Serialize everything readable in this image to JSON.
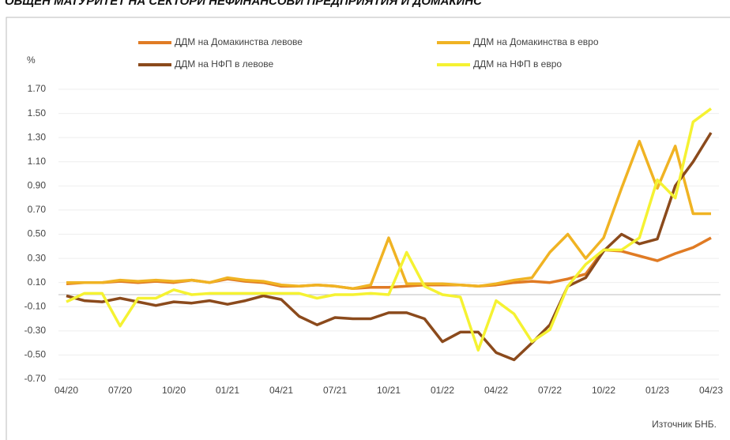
{
  "chart_data": {
    "type": "line",
    "title": "ОБЩЕН МАТУРИТЕТ НА СЕКТОРИ НЕФИНАНСОВИ ПРЕДПРИЯТИЯ И ДОМАКИНС",
    "y_label": "%",
    "source": "Източник БНБ.",
    "categories": [
      "04/20",
      null,
      null,
      "07/20",
      null,
      null,
      "10/20",
      null,
      null,
      "01/21",
      null,
      null,
      "04/21",
      null,
      null,
      "07/21",
      null,
      null,
      "10/21",
      null,
      null,
      "01/22",
      null,
      null,
      "04/22",
      null,
      null,
      "07/22",
      null,
      null,
      "10/22",
      null,
      null,
      "01/23",
      null,
      null,
      "04/23"
    ],
    "series": [
      {
        "name": "ДДМ на Домакинства левове",
        "color": "#e07b24",
        "values": [
          0.09,
          0.1,
          0.1,
          0.11,
          0.1,
          0.11,
          0.1,
          0.12,
          0.1,
          0.13,
          0.11,
          0.1,
          0.07,
          0.07,
          0.08,
          0.07,
          0.05,
          0.06,
          0.06,
          0.07,
          0.08,
          0.08,
          0.08,
          0.07,
          0.08,
          0.1,
          0.11,
          0.1,
          0.13,
          0.17,
          0.37,
          0.36,
          0.32,
          0.28,
          0.34,
          0.39,
          0.47
        ]
      },
      {
        "name": "ДДМ на Домакинства в евро",
        "color": "#f0b323",
        "values": [
          0.1,
          0.1,
          0.1,
          0.12,
          0.11,
          0.12,
          0.11,
          0.12,
          0.1,
          0.14,
          0.12,
          0.11,
          0.08,
          0.07,
          0.08,
          0.07,
          0.05,
          0.08,
          0.47,
          0.09,
          0.09,
          0.09,
          0.08,
          0.07,
          0.09,
          0.12,
          0.14,
          0.35,
          0.5,
          0.3,
          0.47,
          0.88,
          1.27,
          0.88,
          1.23,
          0.67,
          0.67
        ]
      },
      {
        "name": "ДДМ на НФП  в левове",
        "color": "#8b4a1c",
        "values": [
          -0.01,
          -0.05,
          -0.06,
          -0.03,
          -0.06,
          -0.09,
          -0.06,
          -0.07,
          -0.05,
          -0.08,
          -0.05,
          -0.01,
          -0.04,
          -0.18,
          -0.25,
          -0.19,
          -0.2,
          -0.2,
          -0.15,
          -0.15,
          -0.2,
          -0.39,
          -0.31,
          -0.31,
          -0.48,
          -0.54,
          -0.4,
          -0.25,
          0.07,
          0.14,
          0.36,
          0.5,
          0.42,
          0.46,
          0.9,
          1.1,
          1.34
        ]
      },
      {
        "name": "ДДМ на НФП  в евро",
        "color": "#f5f232",
        "values": [
          -0.06,
          0.01,
          0.01,
          -0.26,
          -0.03,
          -0.03,
          0.04,
          0.0,
          0.01,
          0.01,
          0.01,
          0.01,
          0.01,
          0.01,
          -0.03,
          0.0,
          0.0,
          0.01,
          0.0,
          0.35,
          0.07,
          0.0,
          -0.02,
          -0.46,
          -0.05,
          -0.16,
          -0.39,
          -0.29,
          0.07,
          0.25,
          0.37,
          0.37,
          0.47,
          0.95,
          0.8,
          1.43,
          1.54
        ]
      }
    ],
    "ylim": [
      -0.7,
      1.7
    ],
    "yticks": [
      {
        "value": -0.7,
        "label": "-0.70"
      },
      {
        "value": -0.5,
        "label": "-0.50"
      },
      {
        "value": -0.3,
        "label": "-0.30"
      },
      {
        "value": -0.1,
        "label": "-0.10"
      },
      {
        "value": 0.1,
        "label": "0.10"
      },
      {
        "value": 0.3,
        "label": "0.30"
      },
      {
        "value": 0.5,
        "label": "0.50"
      },
      {
        "value": 0.7,
        "label": "0.70"
      },
      {
        "value": 0.9,
        "label": "0.90"
      },
      {
        "value": 1.1,
        "label": "1.10"
      },
      {
        "value": 1.3,
        "label": "1.30"
      },
      {
        "value": 1.5,
        "label": "1.50"
      },
      {
        "value": 1.7,
        "label": "1.70"
      }
    ],
    "grid": true
  }
}
